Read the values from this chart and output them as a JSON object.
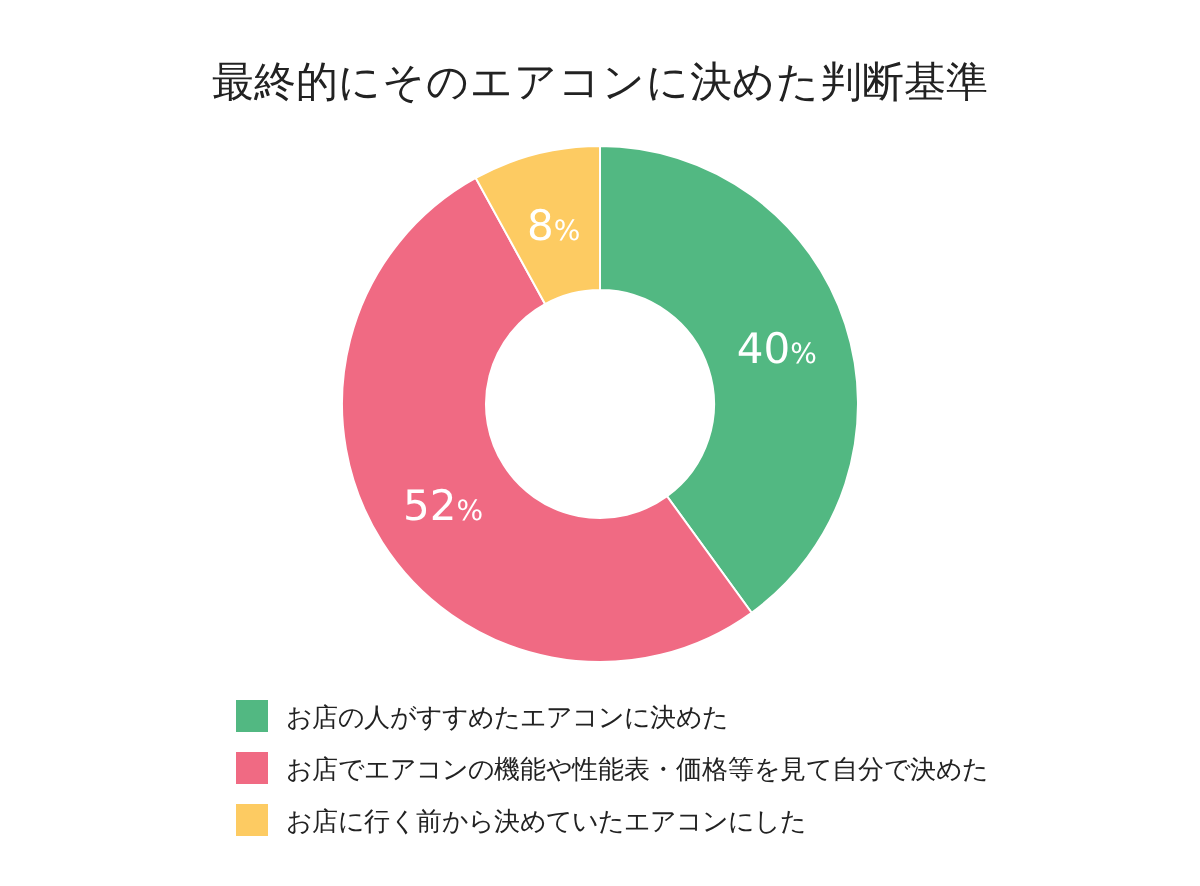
{
  "chart_data": {
    "type": "donut",
    "title": "最終的にそのエアコンに決めた判断基準",
    "categories": [
      "お店の人がすすめたエアコンに決めた",
      "お店でエアコンの機能や性能表・価格等を見て自分で決めた",
      "お店に行く前から決めていたエアコンにした"
    ],
    "values": [
      40,
      52,
      8
    ],
    "colors": [
      "#52b882",
      "#f06a83",
      "#fdcb62"
    ],
    "value_labels": [
      "40%",
      "52%",
      "8%"
    ],
    "legend": "bottom"
  }
}
